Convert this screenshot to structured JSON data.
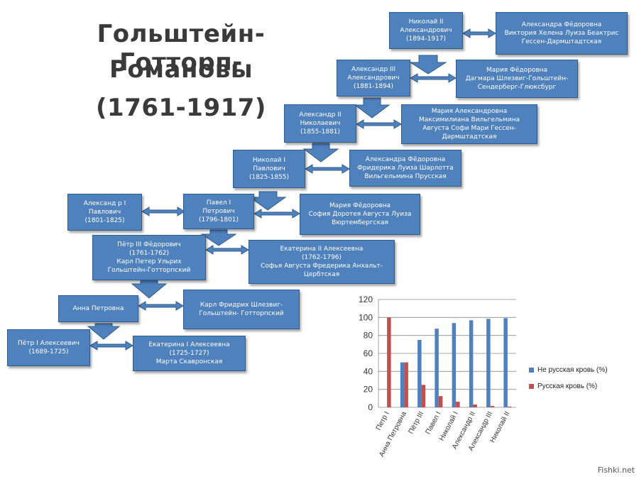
{
  "title": {
    "line1": "Гольштейн-Готторп-",
    "line2": "Романовы",
    "line3": "(1761-1917)"
  },
  "boxes": {
    "nikolai2": [
      "Николай II",
      "Александрович",
      "(1894-1917)"
    ],
    "alexandra_f2": [
      "Александра Фёдоровна",
      "Виктория Хелена Луиза Беактрис",
      "Гессен-Дармштадтская"
    ],
    "alexandr3": [
      "Александр III",
      "Александрович",
      "(1881-1894)"
    ],
    "maria_f": [
      "Мария Фёдоровна",
      "Дагмара Шлезвиг-Гольштейн-",
      "Сендерберг-Глюксбург"
    ],
    "alexandr2": [
      "Александр II",
      "Николаевич",
      "(1855-1881)"
    ],
    "maria_a": [
      "Мария Александровна",
      "Максимилиана Вильгельмина",
      "Августа Софи Мари Гессен-",
      "Дармштадтская"
    ],
    "nikolai1": [
      "Николай I",
      "Павлович",
      "(1825-1855)"
    ],
    "alexandra_f1": [
      "Александра Фёдоровна",
      "Фридерика Луиза Шарлотта",
      "Вильгельмина Прусская"
    ],
    "alexandr1": [
      "Александ р I",
      "Павлович",
      "(1801-1825)"
    ],
    "pavel1": [
      "Павел I",
      "Петрович",
      "(1796-1801)"
    ],
    "maria_f_pavel": [
      "Мария Фёдоровна",
      "София Доротея Августа Луиза",
      "Вюртембергская"
    ],
    "petr3": [
      "Пётр III Фёдорович",
      "(1761-1762)",
      "Карл Петер Ульрих",
      "Гольштейн-Готторпский"
    ],
    "ekaterina2": [
      "Екатерина II Алексеевна",
      "(1762-1796)",
      "Софья Августа Фредерика Анхальт-",
      "Цербтская"
    ],
    "anna": [
      "Анна Петровна"
    ],
    "karl_fr": [
      "Карл Фридрих Шлезвиг-",
      "Гольштейн- Готторпский"
    ],
    "petr1": [
      "Пётр I Алексеевич",
      "(1689-1725)"
    ],
    "ekaterina1": [
      "Екатерина I  Алексеевна",
      "(1725-1727)",
      "Марта Скавронская"
    ]
  },
  "colors": {
    "box": "#4f81bd",
    "box_border": "#2f5b8f",
    "series1": "#4f81bd",
    "series2": "#c0504d"
  },
  "chart_data": {
    "type": "bar",
    "categories": [
      "Петр I",
      "Анна Петровна",
      "Пётр III",
      "Павел I",
      "Николай I",
      "Александр II",
      "Александр III",
      "Николай II"
    ],
    "series": [
      {
        "name": "Не русская кровь (%)",
        "color": "#4f81bd",
        "values": [
          0,
          50,
          75,
          87.5,
          93.75,
          96.875,
          98.4375,
          99.21875
        ]
      },
      {
        "name": "Русская кровь (%)",
        "color": "#c0504d",
        "values": [
          100,
          50,
          25,
          12.5,
          6.25,
          3.125,
          1.5625,
          0.78125
        ]
      }
    ],
    "yticks": [
      "0",
      "20",
      "40",
      "60",
      "80",
      "100",
      "120"
    ],
    "ylim": [
      0,
      120
    ],
    "grid": true,
    "legend": "right"
  },
  "watermark": "Fishki.net"
}
